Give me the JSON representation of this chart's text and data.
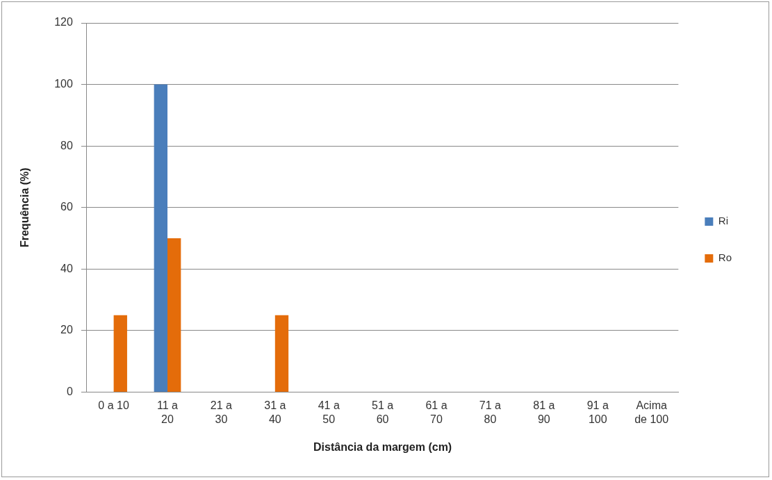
{
  "chart_data": {
    "type": "bar",
    "xlabel": "Distância da margem (cm)",
    "ylabel": "Frequência (%)",
    "categories": [
      "0 a 10",
      "11 a\n20",
      "21 a\n30",
      "31 a\n40",
      "41 a\n50",
      "51 a\n60",
      "61 a\n70",
      "71 a\n80",
      "81 a\n90",
      "91 a\n100",
      "Acima\nde 100"
    ],
    "series": [
      {
        "name": "Ri",
        "color": "#4a7ebb",
        "values": [
          0,
          100,
          0,
          0,
          0,
          0,
          0,
          0,
          0,
          0,
          0
        ]
      },
      {
        "name": "Ro",
        "color": "#e46c0a",
        "values": [
          25,
          50,
          0,
          25,
          0,
          0,
          0,
          0,
          0,
          0,
          0
        ]
      }
    ],
    "ylim": [
      0,
      120
    ],
    "yticks": [
      0,
      20,
      40,
      60,
      80,
      100,
      120
    ],
    "grid": "y",
    "legend": "right"
  }
}
